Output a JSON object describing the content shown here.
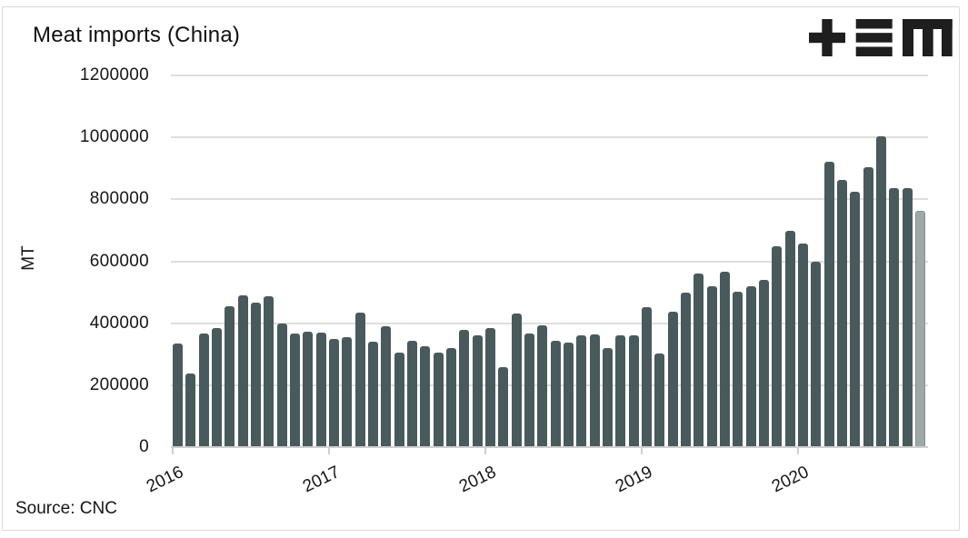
{
  "branding": {
    "logo_icon": "tem-logo"
  },
  "chart_data": {
    "type": "bar",
    "title": "Meat imports (China)",
    "ylabel": "MT",
    "source": "Source: CNC",
    "ylim": [
      0,
      1200000
    ],
    "grid": "horizontal",
    "legend": "none",
    "yticks": [
      {
        "value": 0,
        "label": "0"
      },
      {
        "value": 200000,
        "label": "200000"
      },
      {
        "value": 400000,
        "label": "400000"
      },
      {
        "value": 600000,
        "label": "600000"
      },
      {
        "value": 800000,
        "label": "800000"
      },
      {
        "value": 1000000,
        "label": "1000000"
      },
      {
        "value": 1200000,
        "label": "1200000"
      }
    ],
    "xticks": [
      {
        "index": 0,
        "label": "2016"
      },
      {
        "index": 12,
        "label": "2017"
      },
      {
        "index": 24,
        "label": "2018"
      },
      {
        "index": 36,
        "label": "2019"
      },
      {
        "index": 48,
        "label": "2020"
      }
    ],
    "x": [
      "2016-01",
      "2016-02",
      "2016-03",
      "2016-04",
      "2016-05",
      "2016-06",
      "2016-07",
      "2016-08",
      "2016-09",
      "2016-10",
      "2016-11",
      "2016-12",
      "2017-01",
      "2017-02",
      "2017-03",
      "2017-04",
      "2017-05",
      "2017-06",
      "2017-07",
      "2017-08",
      "2017-09",
      "2017-10",
      "2017-11",
      "2017-12",
      "2018-01",
      "2018-02",
      "2018-03",
      "2018-04",
      "2018-05",
      "2018-06",
      "2018-07",
      "2018-08",
      "2018-09",
      "2018-10",
      "2018-11",
      "2018-12",
      "2019-01",
      "2019-02",
      "2019-03",
      "2019-04",
      "2019-05",
      "2019-06",
      "2019-07",
      "2019-08",
      "2019-09",
      "2019-10",
      "2019-11",
      "2019-12",
      "2020-01",
      "2020-02",
      "2020-03",
      "2020-04",
      "2020-05",
      "2020-06",
      "2020-07",
      "2020-08",
      "2020-09",
      "2020-10"
    ],
    "values": [
      335000,
      237000,
      368000,
      384000,
      455000,
      491000,
      466000,
      487000,
      399000,
      368000,
      373000,
      370000,
      350000,
      356000,
      434000,
      341000,
      390000,
      305000,
      342000,
      327000,
      306000,
      319000,
      380000,
      360000,
      385000,
      259000,
      431000,
      368000,
      392000,
      344000,
      339000,
      360000,
      365000,
      321000,
      360000,
      360000,
      451000,
      302000,
      436000,
      500000,
      560000,
      520000,
      565000,
      502000,
      518000,
      540000,
      648000,
      699000,
      658000,
      600000,
      921000,
      864000,
      825000,
      903000,
      1005000,
      835000,
      835000,
      764000
    ],
    "highlight_last_bar": true,
    "colors": {
      "bar": "#495a5c",
      "bar_highlight_fill": "#9ea9a7",
      "bar_highlight_border": "#848f8d",
      "gridline": "#dedede",
      "axis": "#cfcfcf",
      "text": "#161616",
      "logo": "#1e1e1e"
    }
  }
}
